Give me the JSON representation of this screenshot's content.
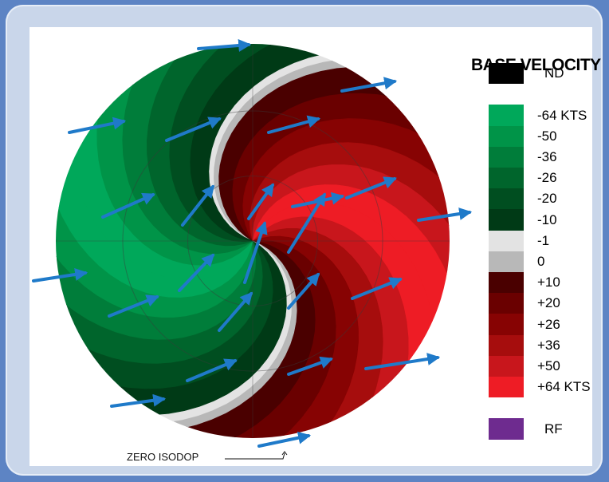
{
  "legend": {
    "title": "BASE VELOCITY",
    "entries": [
      {
        "label": "ND",
        "color": "#000000"
      },
      {
        "label": "",
        "color": "#ffffff"
      },
      {
        "label": "-64 KTS",
        "color": "#00a85a"
      },
      {
        "label": "-50",
        "color": "#009448"
      },
      {
        "label": "-36",
        "color": "#007d3a"
      },
      {
        "label": "-26",
        "color": "#00652c"
      },
      {
        "label": "-20",
        "color": "#004e20"
      },
      {
        "label": "-10",
        "color": "#003a16"
      },
      {
        "label": "-1",
        "color": "#e3e3e3"
      },
      {
        "label": "0",
        "color": "#b8b8b8"
      },
      {
        "label": "+10",
        "color": "#4a0000"
      },
      {
        "label": "+20",
        "color": "#6a0000"
      },
      {
        "label": "+26",
        "color": "#870303"
      },
      {
        "label": "+36",
        "color": "#a60d0d"
      },
      {
        "label": "+50",
        "color": "#c8161c"
      },
      {
        "label": "+64 KTS",
        "color": "#ee1c25"
      },
      {
        "label": "",
        "color": "#ffffff"
      },
      {
        "label": "RF",
        "color": "#6e2b8f"
      }
    ]
  },
  "annotation": {
    "zero_isodop": "ZERO ISODOP"
  },
  "colors": {
    "background": "#5d84c4",
    "frame": "#c9d6ea",
    "arrow": "#1f7ac9",
    "range_ring": "#3a3a3a"
  }
}
